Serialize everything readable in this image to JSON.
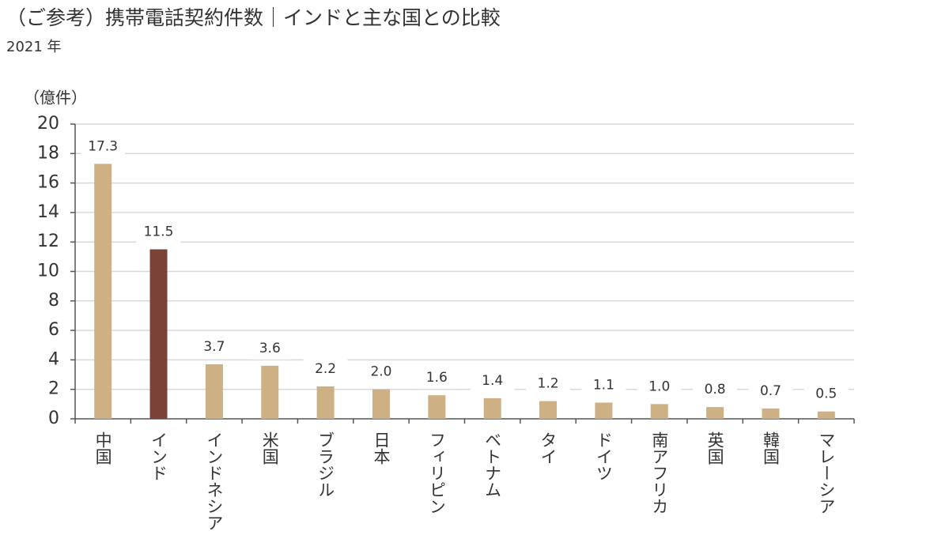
{
  "chart_data": {
    "type": "bar",
    "title": "（ご参考）携帯電話契約件数｜インドと主な国との比較",
    "subtitle": "2021 年",
    "y_label": "（億件）",
    "categories": [
      "中国",
      "インド",
      "インドネシア",
      "米国",
      "ブラジル",
      "日本",
      "フィリピン",
      "ベトナム",
      "タイ",
      "ドイツ",
      "南アフリカ",
      "英国",
      "韓国",
      "マレーシア"
    ],
    "values": [
      17.3,
      11.5,
      3.7,
      3.6,
      2.2,
      2.0,
      1.6,
      1.4,
      1.2,
      1.1,
      1.0,
      0.8,
      0.7,
      0.5
    ],
    "value_labels": [
      "17.3",
      "11.5",
      "3.7",
      "3.6",
      "2.2",
      "2.0",
      "1.6",
      "1.4",
      "1.2",
      "1.1",
      "1.0",
      "0.8",
      "0.7",
      "0.5"
    ],
    "colors": [
      "#cdb083",
      "#7b4238",
      "#cdb083",
      "#cdb083",
      "#cdb083",
      "#cdb083",
      "#cdb083",
      "#cdb083",
      "#cdb083",
      "#cdb083",
      "#cdb083",
      "#cdb083",
      "#cdb083",
      "#cdb083"
    ],
    "label_colors": [
      "#444444",
      "#7b2a22",
      "#444444",
      "#444444",
      "#444444",
      "#444444",
      "#444444",
      "#444444",
      "#444444",
      "#444444",
      "#444444",
      "#444444",
      "#444444",
      "#444444"
    ],
    "ylim": [
      0,
      20
    ],
    "yticks": [
      0,
      2,
      4,
      6,
      8,
      10,
      12,
      14,
      16,
      18,
      20
    ],
    "grid": true
  }
}
